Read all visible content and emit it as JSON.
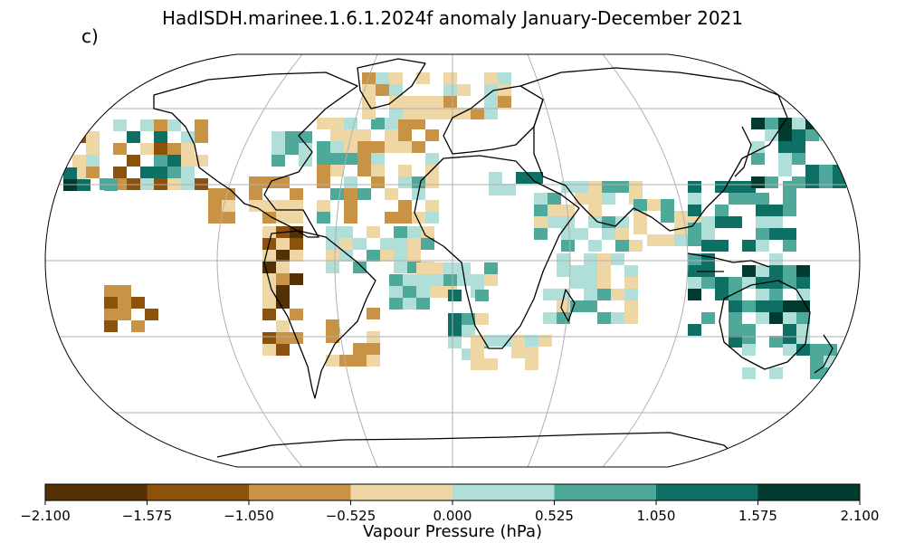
{
  "title": "HadISDH.marinee.1.6.1.2024f anomaly January-December 2021",
  "panel_label": "c)",
  "colorbar": {
    "label": "Vapour Pressure (hPa)",
    "ticks": [
      "−2.100",
      "−1.575",
      "−1.050",
      "−0.525",
      "0.000",
      "0.525",
      "1.050",
      "1.575",
      "2.100"
    ],
    "colors": [
      "#543005",
      "#8c510a",
      "#c89345",
      "#efd7a5",
      "#b0ded8",
      "#4fa99a",
      "#0e6f64",
      "#013a2e"
    ]
  },
  "map": {
    "projection": "Robinson",
    "graticule": true,
    "land_outline_color": "#000000",
    "graticule_color": "#b0b0b0"
  }
}
